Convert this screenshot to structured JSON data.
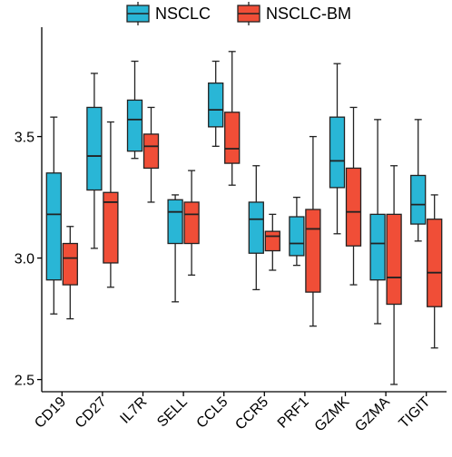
{
  "chart_data": {
    "type": "boxplot",
    "title": "",
    "xlabel": "",
    "ylabel": "",
    "ylim": [
      2.45,
      3.95
    ],
    "yticks": [
      2.5,
      3.0,
      3.5
    ],
    "ytick_labels": [
      "2.5",
      "3.0",
      "3.5"
    ],
    "legend_position": "top",
    "categories": [
      "CD19",
      "CD27",
      "IL7R",
      "SELL",
      "CCL5",
      "CCR5",
      "PRF1",
      "GZMK",
      "GZMA",
      "TIGIT"
    ],
    "series": [
      {
        "name": "NSCLC",
        "color": "#29b6d6",
        "boxes": [
          {
            "min": 2.77,
            "q1": 2.91,
            "median": 3.18,
            "q3": 3.35,
            "max": 3.58
          },
          {
            "min": 3.04,
            "q1": 3.28,
            "median": 3.42,
            "q3": 3.62,
            "max": 3.76
          },
          {
            "min": 3.41,
            "q1": 3.44,
            "median": 3.57,
            "q3": 3.65,
            "max": 3.81
          },
          {
            "min": 2.82,
            "q1": 3.06,
            "median": 3.19,
            "q3": 3.24,
            "max": 3.26
          },
          {
            "min": 3.46,
            "q1": 3.54,
            "median": 3.61,
            "q3": 3.72,
            "max": 3.81
          },
          {
            "min": 2.87,
            "q1": 3.02,
            "median": 3.16,
            "q3": 3.23,
            "max": 3.38
          },
          {
            "min": 2.97,
            "q1": 3.01,
            "median": 3.06,
            "q3": 3.17,
            "max": 3.25
          },
          {
            "min": 3.1,
            "q1": 3.29,
            "median": 3.4,
            "q3": 3.58,
            "max": 3.8
          },
          {
            "min": 2.73,
            "q1": 2.91,
            "median": 3.06,
            "q3": 3.18,
            "max": 3.57
          },
          {
            "min": 3.07,
            "q1": 3.14,
            "median": 3.22,
            "q3": 3.34,
            "max": 3.57
          }
        ]
      },
      {
        "name": "NSCLC-BM",
        "color": "#f04e37",
        "boxes": [
          {
            "min": 2.75,
            "q1": 2.89,
            "median": 3.0,
            "q3": 3.06,
            "max": 3.13
          },
          {
            "min": 2.88,
            "q1": 2.98,
            "median": 3.23,
            "q3": 3.27,
            "max": 3.56
          },
          {
            "min": 3.23,
            "q1": 3.37,
            "median": 3.46,
            "q3": 3.51,
            "max": 3.62
          },
          {
            "min": 2.93,
            "q1": 3.06,
            "median": 3.18,
            "q3": 3.23,
            "max": 3.36
          },
          {
            "min": 3.3,
            "q1": 3.39,
            "median": 3.45,
            "q3": 3.6,
            "max": 3.85
          },
          {
            "min": 2.95,
            "q1": 3.03,
            "median": 3.09,
            "q3": 3.11,
            "max": 3.18
          },
          {
            "min": 2.72,
            "q1": 2.86,
            "median": 3.12,
            "q3": 3.2,
            "max": 3.5
          },
          {
            "min": 2.89,
            "q1": 3.05,
            "median": 3.19,
            "q3": 3.37,
            "max": 3.62
          },
          {
            "min": 2.48,
            "q1": 2.81,
            "median": 2.92,
            "q3": 3.18,
            "max": 3.38
          },
          {
            "min": 2.63,
            "q1": 2.8,
            "median": 2.94,
            "q3": 3.16,
            "max": 3.26
          }
        ]
      }
    ]
  }
}
